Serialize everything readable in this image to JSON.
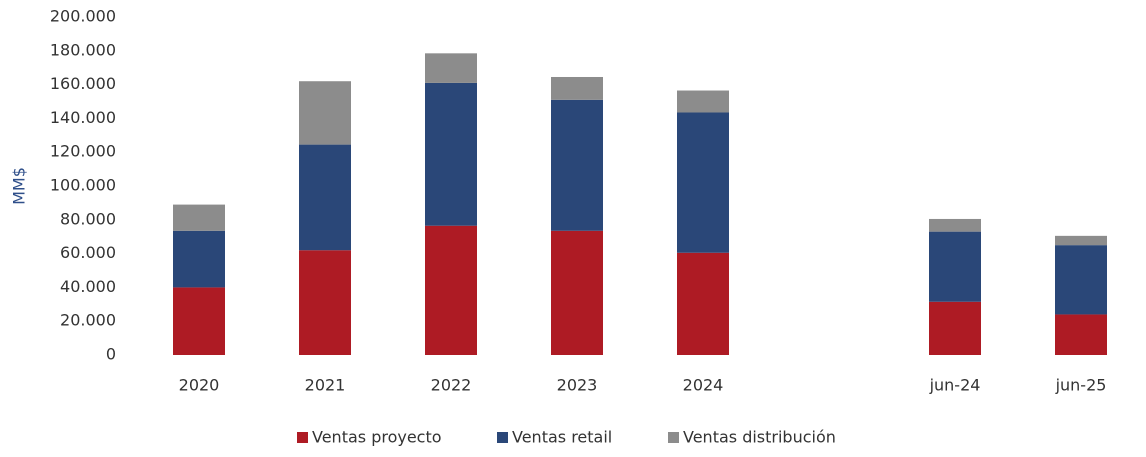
{
  "chart_data": {
    "type": "bar",
    "stacked": true,
    "y_label": "MM$",
    "categories": [
      "2020",
      "2021",
      "2022",
      "2023",
      "2024",
      null,
      "jun-24",
      "jun-25"
    ],
    "series": [
      {
        "name": "Ventas proyecto",
        "color": "#ae1b24",
        "values": [
          40000,
          62000,
          76500,
          73500,
          60500,
          null,
          31500,
          24000
        ]
      },
      {
        "name": "Ventas retail",
        "color": "#2a4778",
        "values": [
          33500,
          62500,
          84500,
          77500,
          83000,
          null,
          41500,
          41000
        ]
      },
      {
        "name": "Ventas distribución",
        "color": "#8c8c8c",
        "values": [
          15500,
          37500,
          17500,
          13500,
          13000,
          null,
          7500,
          5500
        ]
      }
    ],
    "ylim": [
      0,
      200000
    ],
    "yticks": [
      0,
      {
        "value": 20000,
        "label": "20.000"
      },
      {
        "value": 40000,
        "label": "40.000"
      },
      {
        "value": 60000,
        "label": "60.000"
      },
      {
        "value": 80000,
        "label": "80.000"
      },
      {
        "value": 100000,
        "label": "100.000"
      },
      {
        "value": 120000,
        "label": "120.000"
      },
      {
        "value": 140000,
        "label": "140.000"
      },
      {
        "value": 160000,
        "label": "160.000"
      },
      {
        "value": 180000,
        "label": "180.000"
      },
      {
        "value": 200000,
        "label": "200.000"
      }
    ],
    "grid": false,
    "legend": "bottom"
  }
}
